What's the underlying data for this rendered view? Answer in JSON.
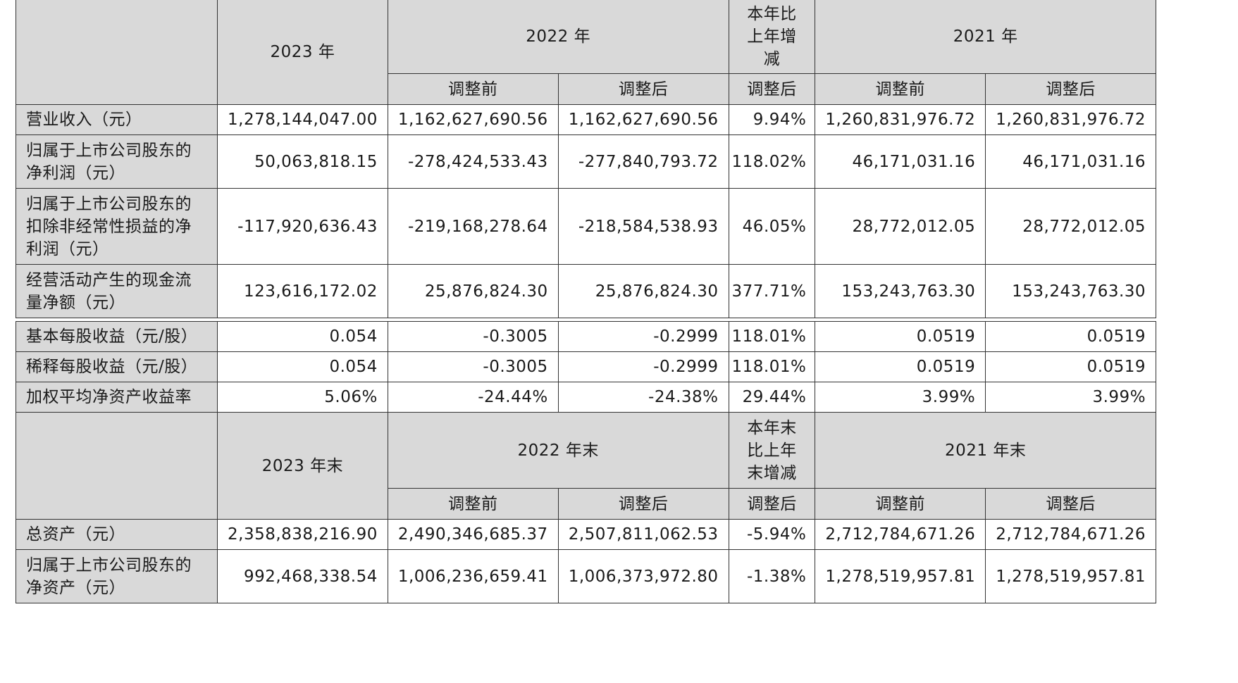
{
  "header1": {
    "y2023": "2023 年",
    "y2022": "2022 年",
    "change": "本年比上年增减",
    "y2021": "2021 年",
    "before": "调整前",
    "after": "调整后"
  },
  "rows1": [
    {
      "label": "营业收入（元）",
      "v2023": "1,278,144,047.00",
      "v2022b": "1,162,627,690.56",
      "v2022a": "1,162,627,690.56",
      "chg": "9.94%",
      "v2021b": "1,260,831,976.72",
      "v2021a": "1,260,831,976.72"
    },
    {
      "label": "归属于上市公司股东的净利润（元）",
      "v2023": "50,063,818.15",
      "v2022b": "-278,424,533.43",
      "v2022a": "-277,840,793.72",
      "chg": "118.02%",
      "v2021b": "46,171,031.16",
      "v2021a": "46,171,031.16"
    },
    {
      "label": "归属于上市公司股东的扣除非经常性损益的净利润（元）",
      "v2023": "-117,920,636.43",
      "v2022b": "-219,168,278.64",
      "v2022a": "-218,584,538.93",
      "chg": "46.05%",
      "v2021b": "28,772,012.05",
      "v2021a": "28,772,012.05"
    },
    {
      "label": "经营活动产生的现金流量净额（元）",
      "v2023": "123,616,172.02",
      "v2022b": "25,876,824.30",
      "v2022a": "25,876,824.30",
      "chg": "377.71%",
      "v2021b": "153,243,763.30",
      "v2021a": "153,243,763.30"
    }
  ],
  "rows2": [
    {
      "label": "基本每股收益（元/股）",
      "v2023": "0.054",
      "v2022b": "-0.3005",
      "v2022a": "-0.2999",
      "chg": "118.01%",
      "v2021b": "0.0519",
      "v2021a": "0.0519"
    },
    {
      "label": "稀释每股收益（元/股）",
      "v2023": "0.054",
      "v2022b": "-0.3005",
      "v2022a": "-0.2999",
      "chg": "118.01%",
      "v2021b": "0.0519",
      "v2021a": "0.0519"
    },
    {
      "label": "加权平均净资产收益率",
      "v2023": "5.06%",
      "v2022b": "-24.44%",
      "v2022a": "-24.38%",
      "chg": "29.44%",
      "v2021b": "3.99%",
      "v2021a": "3.99%"
    }
  ],
  "header2": {
    "y2023": "2023 年末",
    "y2022": "2022 年末",
    "change": "本年末比上年末增减",
    "y2021": "2021 年末",
    "before": "调整前",
    "after": "调整后"
  },
  "rows3": [
    {
      "label": "总资产（元）",
      "v2023": "2,358,838,216.90",
      "v2022b": "2,490,346,685.37",
      "v2022a": "2,507,811,062.53",
      "chg": "-5.94%",
      "v2021b": "2,712,784,671.26",
      "v2021a": "2,712,784,671.26"
    },
    {
      "label": "归属于上市公司股东的净资产（元）",
      "v2023": "992,468,338.54",
      "v2022b": "1,006,236,659.41",
      "v2022a": "1,006,373,972.80",
      "chg": "-1.38%",
      "v2021b": "1,278,519,957.81",
      "v2021a": "1,278,519,957.81"
    }
  ]
}
